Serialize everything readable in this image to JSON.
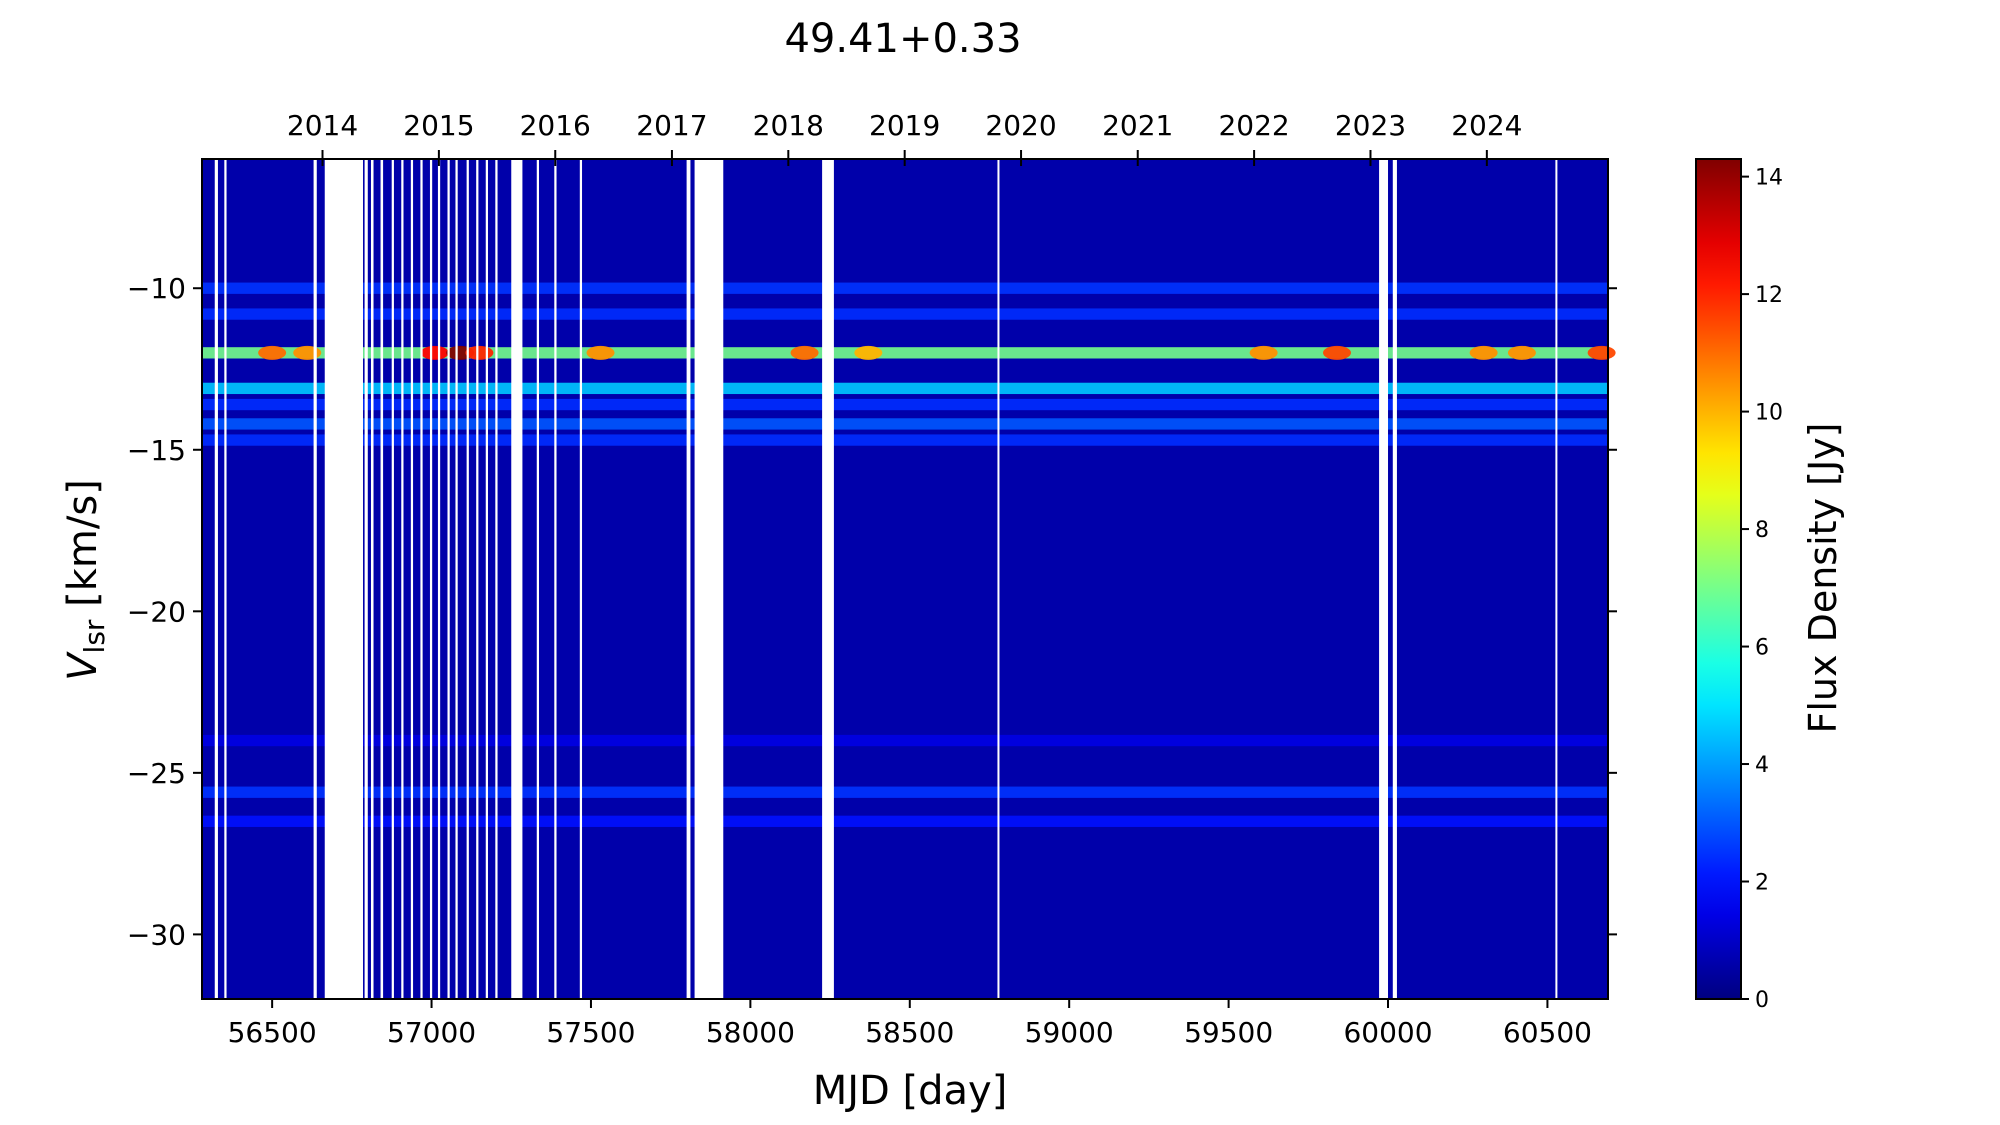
{
  "chart_data": {
    "type": "heatmap",
    "title": "49.41+0.33",
    "xlabel": "MJD [day]",
    "ylabel_main": "V",
    "ylabel_sub": "lsr",
    "ylabel_unit": " [km/s]",
    "colorbar_label": "Flux Density [Jy]",
    "xlim": [
      56280,
      60690
    ],
    "ylim": [
      -32,
      -6
    ],
    "colorbar_range": [
      0,
      14.3
    ],
    "colormap": "jet",
    "grid": false,
    "x_ticks": [
      56500,
      57000,
      57500,
      58000,
      58500,
      59000,
      59500,
      60000,
      60500
    ],
    "x_tick_labels": [
      "56500",
      "57000",
      "57500",
      "58000",
      "58500",
      "59000",
      "59500",
      "60000",
      "60500"
    ],
    "y_ticks": [
      -10,
      -15,
      -20,
      -25,
      -30
    ],
    "y_tick_labels": [
      "−10",
      "−15",
      "−20",
      "−25",
      "−30"
    ],
    "top_ticks_mjd": [
      56658,
      57023,
      57388,
      57754,
      58119,
      58484,
      58849,
      59215,
      59580,
      59945,
      60310
    ],
    "top_tick_labels": [
      "2014",
      "2015",
      "2016",
      "2017",
      "2018",
      "2019",
      "2020",
      "2021",
      "2022",
      "2023",
      "2024"
    ],
    "colorbar_ticks": [
      0,
      2,
      4,
      6,
      8,
      10,
      12,
      14
    ],
    "colorbar_tick_labels": [
      "0",
      "2",
      "4",
      "6",
      "8",
      "10",
      "12",
      "14"
    ],
    "background_flux": 0.6,
    "velocity_components": [
      {
        "velocity": -10.0,
        "flux": 2.5
      },
      {
        "velocity": -10.8,
        "flux": 2.4
      },
      {
        "velocity": -12.0,
        "flux": 7.0
      },
      {
        "velocity": -13.1,
        "flux": 4.6
      },
      {
        "velocity": -13.6,
        "flux": 2.4
      },
      {
        "velocity": -14.2,
        "flux": 3.0
      },
      {
        "velocity": -14.7,
        "flux": 2.4
      },
      {
        "velocity": -24.0,
        "flux": 1.4
      },
      {
        "velocity": -25.6,
        "flux": 2.5
      },
      {
        "velocity": -26.5,
        "flux": 2.0
      }
    ],
    "flares": [
      {
        "mjd": 56500,
        "velocity": -12.0,
        "flux": 11.0
      },
      {
        "mjd": 56610,
        "velocity": -12.0,
        "flux": 10.5
      },
      {
        "mjd": 57010,
        "velocity": -12.0,
        "flux": 12.5
      },
      {
        "mjd": 57090,
        "velocity": -12.0,
        "flux": 14.3
      },
      {
        "mjd": 57150,
        "velocity": -12.0,
        "flux": 12.0
      },
      {
        "mjd": 57530,
        "velocity": -12.0,
        "flux": 10.5
      },
      {
        "mjd": 58170,
        "velocity": -12.0,
        "flux": 11.0
      },
      {
        "mjd": 58370,
        "velocity": -12.0,
        "flux": 10.0
      },
      {
        "mjd": 59610,
        "velocity": -12.0,
        "flux": 10.5
      },
      {
        "mjd": 59840,
        "velocity": -12.0,
        "flux": 11.5
      },
      {
        "mjd": 60300,
        "velocity": -12.0,
        "flux": 10.5
      },
      {
        "mjd": 60420,
        "velocity": -12.0,
        "flux": 10.5
      },
      {
        "mjd": 60670,
        "velocity": -12.0,
        "flux": 11.5
      }
    ],
    "data_gaps_mjd": [
      [
        56320,
        56330
      ],
      [
        56350,
        56357
      ],
      [
        56630,
        56640
      ],
      [
        56665,
        56785
      ],
      [
        56790,
        56800
      ],
      [
        56810,
        56818
      ],
      [
        56840,
        56848
      ],
      [
        56875,
        56882
      ],
      [
        56905,
        56912
      ],
      [
        56935,
        56942
      ],
      [
        56965,
        56972
      ],
      [
        56995,
        57002
      ],
      [
        57020,
        57027
      ],
      [
        57050,
        57057
      ],
      [
        57075,
        57082
      ],
      [
        57110,
        57117
      ],
      [
        57140,
        57147
      ],
      [
        57170,
        57177
      ],
      [
        57200,
        57207
      ],
      [
        57250,
        57285
      ],
      [
        57330,
        57337
      ],
      [
        57385,
        57392
      ],
      [
        57465,
        57472
      ],
      [
        57800,
        57812
      ],
      [
        57825,
        57915
      ],
      [
        58225,
        58262
      ],
      [
        58775,
        58781
      ],
      [
        59972,
        60000
      ],
      [
        60015,
        60028
      ],
      [
        60525,
        60530
      ]
    ]
  }
}
